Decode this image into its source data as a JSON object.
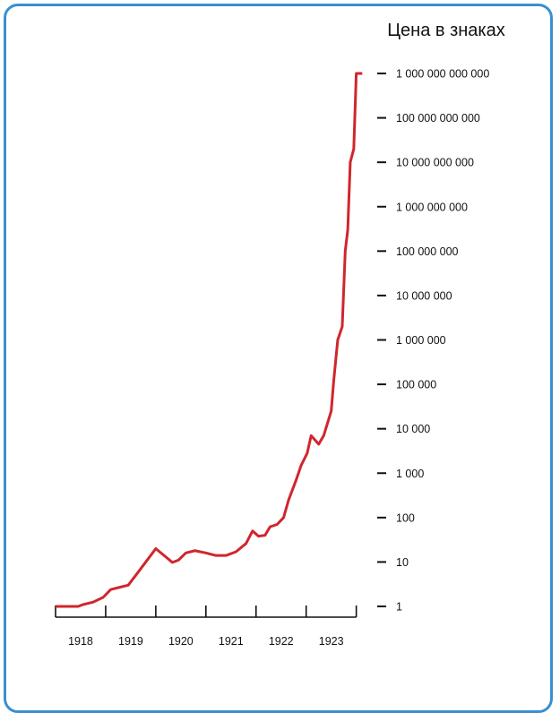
{
  "chart_data": {
    "type": "line",
    "title": "",
    "ylabel": "Цена в знаках",
    "xlabel": "",
    "y_scale": "log",
    "ylim": [
      1,
      1000000000000
    ],
    "xlim": [
      1917.5,
      1923.9
    ],
    "grid": false,
    "legend": "none",
    "colors": {
      "line": "#d0262d",
      "frame": "#3a8fd0",
      "axis": "#111111"
    },
    "x_ticks": [
      {
        "value": 1917.5,
        "label": ""
      },
      {
        "value": 1918.5,
        "label": "1918"
      },
      {
        "value": 1919.5,
        "label": "1919"
      },
      {
        "value": 1920.5,
        "label": "1920"
      },
      {
        "value": 1921.5,
        "label": "1921"
      },
      {
        "value": 1922.5,
        "label": "1922"
      },
      {
        "value": 1923.5,
        "label": "1923"
      }
    ],
    "x_labels": [
      {
        "value": 1918.0,
        "label": "1918"
      },
      {
        "value": 1919.0,
        "label": "1919"
      },
      {
        "value": 1920.0,
        "label": "1920"
      },
      {
        "value": 1921.0,
        "label": "1921"
      },
      {
        "value": 1922.0,
        "label": "1922"
      },
      {
        "value": 1923.0,
        "label": "1923"
      }
    ],
    "y_ticks": [
      {
        "value": 1,
        "label": "1"
      },
      {
        "value": 10,
        "label": "10"
      },
      {
        "value": 100,
        "label": "100"
      },
      {
        "value": 1000,
        "label": "1 000"
      },
      {
        "value": 10000,
        "label": "10 000"
      },
      {
        "value": 100000,
        "label": "100 000"
      },
      {
        "value": 1000000,
        "label": "1 000 000"
      },
      {
        "value": 10000000,
        "label": "10 000 000"
      },
      {
        "value": 100000000,
        "label": "100 000 000"
      },
      {
        "value": 1000000000,
        "label": "1 000 000 000"
      },
      {
        "value": 10000000000,
        "label": "10 000 000 000"
      },
      {
        "value": 100000000000,
        "label": "100 000 000 000"
      },
      {
        "value": 1000000000000,
        "label": "1 000 000 000 000"
      }
    ],
    "series": [
      {
        "points": [
          [
            1917.5,
            1.0
          ],
          [
            1917.75,
            1.0
          ],
          [
            1917.95,
            1.0
          ],
          [
            1918.05,
            1.1
          ],
          [
            1918.25,
            1.25
          ],
          [
            1918.45,
            1.6
          ],
          [
            1918.6,
            2.4
          ],
          [
            1918.78,
            2.7
          ],
          [
            1918.95,
            3.0
          ],
          [
            1919.1,
            5.0
          ],
          [
            1919.3,
            10
          ],
          [
            1919.5,
            20
          ],
          [
            1919.7,
            13
          ],
          [
            1919.83,
            9.8
          ],
          [
            1919.95,
            11
          ],
          [
            1920.1,
            16
          ],
          [
            1920.28,
            18
          ],
          [
            1920.5,
            16
          ],
          [
            1920.7,
            14
          ],
          [
            1920.9,
            14
          ],
          [
            1921.1,
            17
          ],
          [
            1921.3,
            26
          ],
          [
            1921.43,
            50
          ],
          [
            1921.55,
            38
          ],
          [
            1921.68,
            40
          ],
          [
            1921.78,
            62
          ],
          [
            1921.92,
            70
          ],
          [
            1922.05,
            100
          ],
          [
            1922.15,
            250
          ],
          [
            1922.3,
            700
          ],
          [
            1922.4,
            1500
          ],
          [
            1922.52,
            2800
          ],
          [
            1922.6,
            7000
          ],
          [
            1922.75,
            4500
          ],
          [
            1922.85,
            7000
          ],
          [
            1923.0,
            25000
          ],
          [
            1923.05,
            120000
          ],
          [
            1923.13,
            1000000
          ],
          [
            1923.22,
            2000000
          ],
          [
            1923.28,
            100000000
          ],
          [
            1923.33,
            300000000
          ],
          [
            1923.38,
            10000000000
          ],
          [
            1923.45,
            20000000000
          ],
          [
            1923.5,
            1000000000000
          ],
          [
            1923.62,
            1000000000000
          ]
        ]
      }
    ]
  }
}
